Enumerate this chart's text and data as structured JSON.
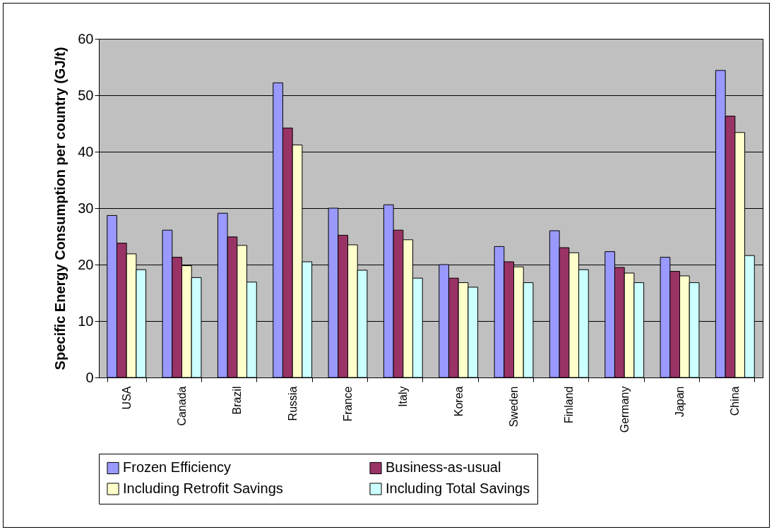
{
  "chart_data": {
    "type": "bar",
    "ylabel": "Specific Energy Consumption per country (GJ/t)",
    "categories": [
      "USA",
      "Canada",
      "Brazil",
      "Russia",
      "France",
      "Italy",
      "Korea",
      "Sweden",
      "Finland",
      "Germany",
      "Japan",
      "China"
    ],
    "series": [
      {
        "name": "Frozen Efficiency",
        "color": "#9999ff",
        "values": [
          28.7,
          26.1,
          29.1,
          52.2,
          30.0,
          30.6,
          20.0,
          23.2,
          26.0,
          22.3,
          21.3,
          54.4
        ]
      },
      {
        "name": "Business-as-usual",
        "color": "#993366",
        "values": [
          23.8,
          21.3,
          24.9,
          44.2,
          25.2,
          26.1,
          17.6,
          20.5,
          23.0,
          19.5,
          18.8,
          46.3
        ]
      },
      {
        "name": "Including Retrofit Savings",
        "color": "#ffffcc",
        "values": [
          21.9,
          19.8,
          23.4,
          41.2,
          23.5,
          24.4,
          16.8,
          19.6,
          22.1,
          18.5,
          18.0,
          43.4
        ]
      },
      {
        "name": "Including Total Savings",
        "color": "#ccffff",
        "values": [
          19.1,
          17.7,
          16.9,
          20.5,
          19.0,
          17.6,
          16.0,
          16.8,
          19.1,
          16.8,
          16.8,
          21.6
        ]
      }
    ],
    "ylim": [
      0,
      60
    ],
    "yticks": [
      0,
      10,
      20,
      30,
      40,
      50,
      60
    ],
    "grid": "y",
    "legend": "bottom"
  }
}
